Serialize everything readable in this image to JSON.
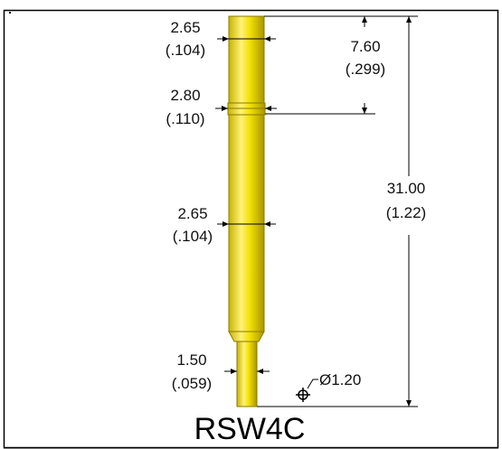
{
  "drawing": {
    "part_number": "RSW4C",
    "colors": {
      "pin_fill": "#f2e000",
      "pin_edge": "#8a7a00",
      "line": "#000000",
      "background": "#ffffff"
    },
    "dimensions": {
      "top_diameter": {
        "mm": "2.65",
        "inch": "(.104)"
      },
      "ring_diameter": {
        "mm": "2.80",
        "inch": "(.110)"
      },
      "barrel_diameter": {
        "mm": "2.65",
        "inch": "(.104)"
      },
      "tip_diameter": {
        "mm": "1.50",
        "inch": "(.059)"
      },
      "ring_position": {
        "mm": "7.60",
        "inch": "(.299)"
      },
      "overall_length": {
        "mm": "31.00",
        "inch": "(1.22)"
      },
      "mount_hole": {
        "label": "Ø1.20"
      }
    }
  }
}
